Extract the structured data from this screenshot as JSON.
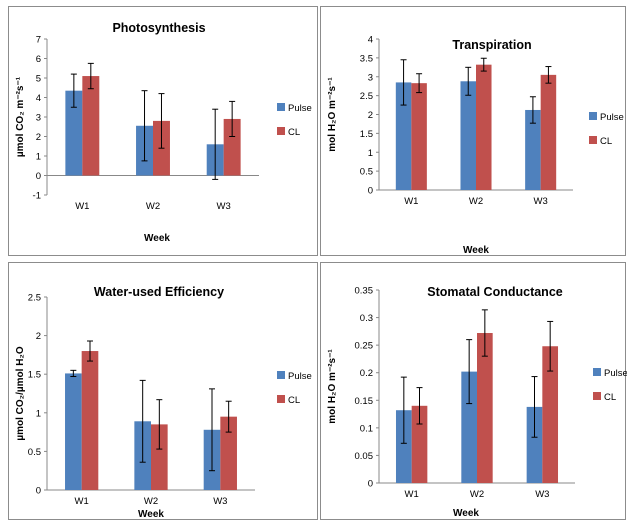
{
  "colors": {
    "Pulse": "#4f81bd",
    "CL": "#c0504d"
  },
  "chart_data": [
    {
      "type": "bar",
      "title": "Photosynthesis",
      "xlabel": "Week",
      "ylabel": "µmol CO₂ m⁻²s⁻¹",
      "categories": [
        "W1",
        "W2",
        "W3"
      ],
      "ylim": [
        -1,
        7
      ],
      "yticks": [
        "-1",
        "0",
        "1",
        "2",
        "3",
        "4",
        "5",
        "6",
        "7"
      ],
      "grid": false,
      "legend": "right",
      "series": [
        {
          "name": "Pulse",
          "values": [
            4.35,
            2.55,
            1.6
          ],
          "err": [
            0.85,
            1.8,
            1.8
          ]
        },
        {
          "name": "CL",
          "values": [
            5.1,
            2.8,
            2.9
          ],
          "err": [
            0.65,
            1.4,
            0.9
          ]
        }
      ]
    },
    {
      "type": "bar",
      "title": "Transpiration",
      "xlabel": "Week",
      "ylabel": "mol H₂O m⁻²s⁻¹",
      "categories": [
        "W1",
        "W2",
        "W3"
      ],
      "ylim": [
        0,
        4
      ],
      "yticks": [
        "0",
        "0.5",
        "1",
        "1.5",
        "2",
        "2.5",
        "3",
        "3.5",
        "4"
      ],
      "grid": false,
      "legend": "right",
      "series": [
        {
          "name": "Pulse",
          "values": [
            2.85,
            2.88,
            2.12
          ],
          "err": [
            0.6,
            0.37,
            0.35
          ]
        },
        {
          "name": "CL",
          "values": [
            2.83,
            3.32,
            3.05
          ],
          "err": [
            0.25,
            0.17,
            0.22
          ]
        }
      ]
    },
    {
      "type": "bar",
      "title": "Water-used Efficiency",
      "xlabel": "Week",
      "ylabel": "µmol CO₂/µmol H₂O",
      "categories": [
        "W1",
        "W2",
        "W3"
      ],
      "ylim": [
        0,
        2.5
      ],
      "yticks": [
        "0",
        "0.5",
        "1",
        "1.5",
        "2",
        "2.5"
      ],
      "grid": false,
      "legend": "right",
      "series": [
        {
          "name": "Pulse",
          "values": [
            1.51,
            0.89,
            0.78
          ],
          "err": [
            0.04,
            0.53,
            0.53
          ]
        },
        {
          "name": "CL",
          "values": [
            1.8,
            0.85,
            0.95
          ],
          "err": [
            0.13,
            0.32,
            0.2
          ]
        }
      ]
    },
    {
      "type": "bar",
      "title": "Stomatal Conductance",
      "xlabel": "Week",
      "ylabel": "mol H₂O m⁻²s⁻¹",
      "categories": [
        "W1",
        "W2",
        "W3"
      ],
      "ylim": [
        0,
        0.35
      ],
      "yticks": [
        "0",
        "0.05",
        "0.1",
        "0.15",
        "0.2",
        "0.25",
        "0.3",
        "0.35"
      ],
      "grid": false,
      "legend": "right",
      "series": [
        {
          "name": "Pulse",
          "values": [
            0.132,
            0.202,
            0.138
          ],
          "err": [
            0.06,
            0.058,
            0.055
          ]
        },
        {
          "name": "CL",
          "values": [
            0.14,
            0.272,
            0.248
          ],
          "err": [
            0.033,
            0.042,
            0.045
          ]
        }
      ]
    }
  ]
}
